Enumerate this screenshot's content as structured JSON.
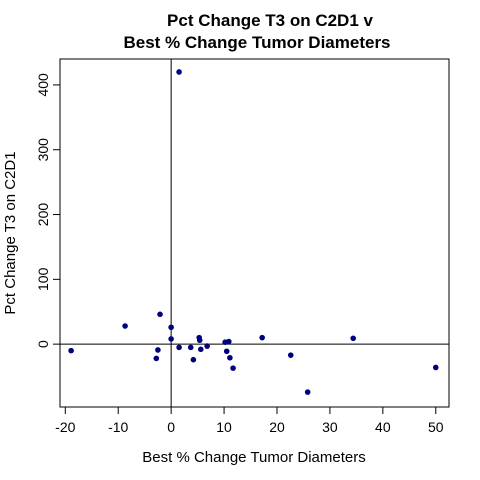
{
  "chart_data": {
    "type": "scatter",
    "title": [
      "Pct Change T3 on C2D1 v",
      "Best % Change Tumor Diameters"
    ],
    "xlabel": "Best % Change Tumor Diameters",
    "ylabel": "Pct Change T3 on C2D1",
    "xlim": [
      -21,
      52.5
    ],
    "ylim": [
      -97,
      440
    ],
    "xticks": [
      -20,
      -10,
      0,
      10,
      20,
      30,
      40,
      50
    ],
    "yticks": [
      0,
      100,
      200,
      300,
      400
    ],
    "reference_lines": {
      "x": 0,
      "y": 0
    },
    "grid": false,
    "legend": "none",
    "point_color": "#00007f",
    "points": [
      {
        "x": -18.9,
        "y": -10
      },
      {
        "x": -8.7,
        "y": 28
      },
      {
        "x": -2.1,
        "y": 46
      },
      {
        "x": -2.5,
        "y": -9
      },
      {
        "x": -2.8,
        "y": -22
      },
      {
        "x": 0.0,
        "y": 26
      },
      {
        "x": 0.0,
        "y": 8
      },
      {
        "x": 1.5,
        "y": 420
      },
      {
        "x": 1.5,
        "y": -5
      },
      {
        "x": 3.7,
        "y": -5
      },
      {
        "x": 4.2,
        "y": -24
      },
      {
        "x": 5.3,
        "y": 10
      },
      {
        "x": 5.4,
        "y": 6
      },
      {
        "x": 5.6,
        "y": -8
      },
      {
        "x": 6.8,
        "y": -3
      },
      {
        "x": 10.2,
        "y": 3
      },
      {
        "x": 10.5,
        "y": -11
      },
      {
        "x": 10.9,
        "y": 4
      },
      {
        "x": 11.1,
        "y": -21
      },
      {
        "x": 11.7,
        "y": -37
      },
      {
        "x": 17.2,
        "y": 10
      },
      {
        "x": 22.6,
        "y": -17
      },
      {
        "x": 25.8,
        "y": -74
      },
      {
        "x": 34.4,
        "y": 9
      },
      {
        "x": 50.0,
        "y": -36
      }
    ]
  }
}
